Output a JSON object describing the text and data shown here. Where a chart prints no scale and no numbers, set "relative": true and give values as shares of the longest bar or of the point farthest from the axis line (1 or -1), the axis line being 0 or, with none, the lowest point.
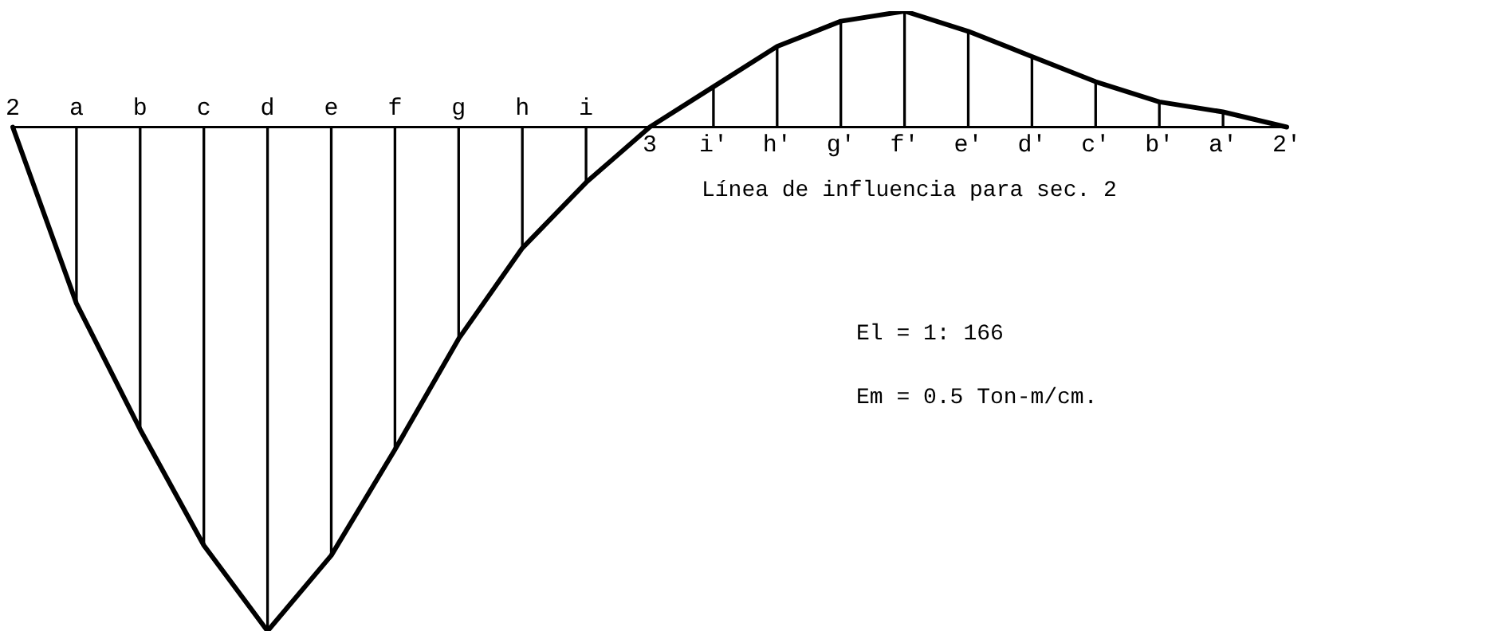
{
  "chart_data": {
    "type": "line",
    "relative": true,
    "categories": [
      "2",
      "a",
      "b",
      "c",
      "d",
      "e",
      "f",
      "g",
      "h",
      "i",
      "3",
      "i'",
      "h'",
      "g'",
      "f'",
      "e'",
      "d'",
      "c'",
      "b'",
      "a'",
      "2'"
    ],
    "series": [
      {
        "color": "#000000",
        "values": [
          0,
          -0.35,
          -0.6,
          -0.83,
          -1,
          -0.85,
          -0.64,
          -0.42,
          -0.24,
          -0.11,
          0,
          0.08,
          0.16,
          0.21,
          0.23,
          0.19,
          0.14,
          0.09,
          0.05,
          0.03,
          0
        ]
      },
      {
        "type": "bar",
        "color": "#000000",
        "values": [
          null,
          -0.35,
          -0.6,
          -0.83,
          -1,
          -0.85,
          -0.64,
          -0.42,
          -0.24,
          -0.11,
          null,
          0.08,
          0.16,
          0.21,
          0.23,
          0.19,
          0.14,
          0.09,
          0.05,
          0.03,
          null
        ]
      }
    ],
    "annotations": [
      "Línea de influencia para sec. 2",
      "El = 1: 166",
      "Em = 0.5 Ton-m/cm."
    ],
    "marker": "none",
    "legend": false
  }
}
